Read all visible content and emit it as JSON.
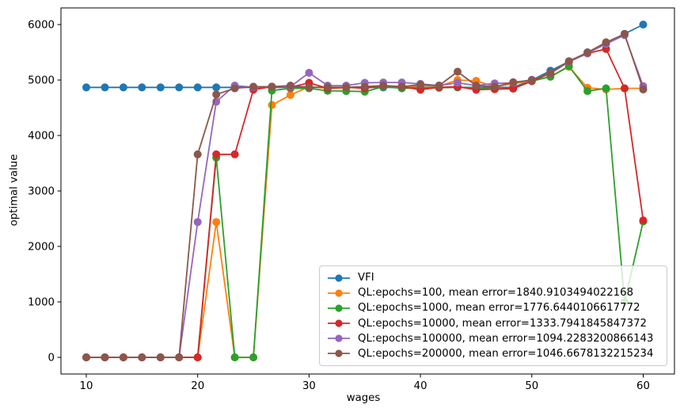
{
  "chart_data": {
    "type": "line",
    "title": "",
    "xlabel": "wages",
    "ylabel": "optimal value",
    "x_ticks": [
      10,
      20,
      30,
      40,
      50,
      60
    ],
    "y_ticks": [
      0,
      1000,
      2000,
      3000,
      4000,
      5000,
      6000
    ],
    "xlim": [
      7.5,
      62.5
    ],
    "ylim": [
      -300,
      6300
    ],
    "grid": false,
    "legend_position": "lower right",
    "marker": "o",
    "x": [
      10,
      11.67,
      13.33,
      15,
      16.67,
      18.33,
      20,
      21.67,
      23.33,
      25,
      26.67,
      28.33,
      30,
      31.67,
      33.33,
      35,
      36.67,
      38.33,
      40,
      41.67,
      43.33,
      45,
      46.67,
      48.33,
      50,
      51.67,
      53.33,
      55,
      56.67,
      58.33,
      60
    ],
    "series": [
      {
        "name": "VFI",
        "color": "#1f77b4",
        "values": [
          4867,
          4867,
          4867,
          4867,
          4867,
          4867,
          4867,
          4867,
          4867,
          4867,
          4867,
          4867,
          4867,
          4867,
          4867,
          4867,
          4867,
          4867,
          4867,
          4867,
          4867,
          4867,
          4867,
          4867,
          5000,
          5167,
          5333,
          5500,
          5667,
          5833,
          6000
        ]
      },
      {
        "name": "QL:epochs=100, mean error=1840.9103494022168",
        "color": "#ff7f0e",
        "values": [
          0,
          0,
          0,
          0,
          0,
          0,
          0,
          2440,
          0,
          0,
          4550,
          4730,
          4880,
          4850,
          4860,
          4880,
          4900,
          4870,
          4900,
          4890,
          5000,
          4985,
          4880,
          4930,
          4990,
          5060,
          5240,
          4860,
          4830,
          4850,
          4850
        ]
      },
      {
        "name": "QL:epochs=1000, mean error=1776.6440106617772",
        "color": "#2ca02c",
        "values": [
          0,
          0,
          0,
          0,
          0,
          0,
          0,
          3600,
          0,
          0,
          4810,
          4850,
          4850,
          4805,
          4800,
          4790,
          4880,
          4850,
          4860,
          4860,
          4870,
          4860,
          4835,
          4845,
          4980,
          5060,
          5250,
          4800,
          4850,
          1000,
          2450
        ]
      },
      {
        "name": "QL:epochs=10000, mean error=1333.7941845847372",
        "color": "#d62728",
        "values": [
          0,
          0,
          0,
          0,
          0,
          0,
          0,
          3660,
          3660,
          4825,
          4880,
          4870,
          4950,
          4850,
          4870,
          4850,
          4900,
          4880,
          4825,
          4870,
          4880,
          4825,
          4835,
          4845,
          4980,
          5120,
          5330,
          5480,
          5560,
          4850,
          2470
        ]
      },
      {
        "name": "QL:epochs=100000, mean error=1094.2283200866143",
        "color": "#9467bd",
        "values": [
          0,
          0,
          0,
          0,
          0,
          0,
          2440,
          4610,
          4900,
          4870,
          4880,
          4880,
          5130,
          4900,
          4900,
          4950,
          4955,
          4955,
          4930,
          4900,
          4950,
          4900,
          4940,
          4950,
          5005,
          5125,
          5330,
          5485,
          5650,
          5810,
          4890
        ]
      },
      {
        "name": "QL:epochs=200000, mean error=1046.6678132215234",
        "color": "#8c564b",
        "values": [
          0,
          0,
          0,
          0,
          0,
          0,
          3660,
          4740,
          4850,
          4880,
          4880,
          4900,
          4870,
          4870,
          4870,
          4880,
          4900,
          4880,
          4920,
          4900,
          5150,
          4900,
          4880,
          4960,
          4995,
          5130,
          5340,
          5495,
          5680,
          5830,
          4830
        ]
      }
    ]
  }
}
